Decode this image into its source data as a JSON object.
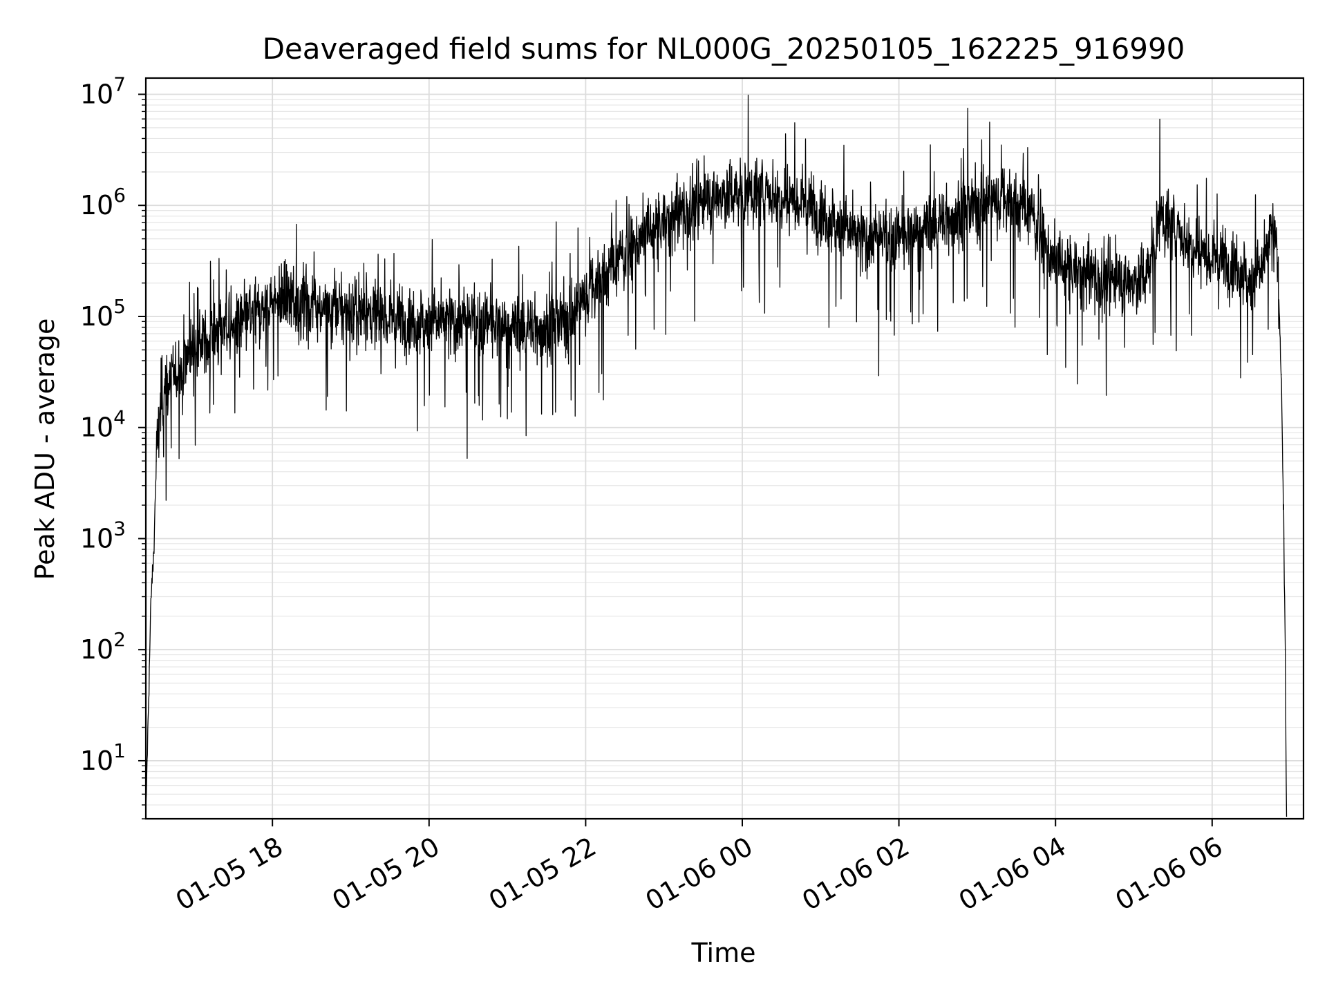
{
  "chart_data": {
    "type": "line",
    "title": "Deaveraged field sums for NL000G_20250105_162225_916990",
    "xlabel": "Time",
    "ylabel": "Peak ADU - average",
    "y_scale": "log",
    "ylim": [
      3,
      14000000
    ],
    "xlim": [
      "2025-01-05 16:23",
      "2025-01-06 07:10"
    ],
    "grid": true,
    "line_color": "#000000",
    "x_ticks": [
      {
        "x": "2025-01-05 18:00",
        "label": "01-05 18"
      },
      {
        "x": "2025-01-05 20:00",
        "label": "01-05 20"
      },
      {
        "x": "2025-01-05 22:00",
        "label": "01-05 22"
      },
      {
        "x": "2025-01-06 00:00",
        "label": "01-06 00"
      },
      {
        "x": "2025-01-06 02:00",
        "label": "01-06 02"
      },
      {
        "x": "2025-01-06 04:00",
        "label": "01-06 04"
      },
      {
        "x": "2025-01-06 06:00",
        "label": "01-06 06"
      }
    ],
    "y_ticks": [
      {
        "value": 10,
        "base": "10",
        "exp": "1"
      },
      {
        "value": 100,
        "base": "10",
        "exp": "2"
      },
      {
        "value": 1000,
        "base": "10",
        "exp": "3"
      },
      {
        "value": 10000,
        "base": "10",
        "exp": "4"
      },
      {
        "value": 100000,
        "base": "10",
        "exp": "5"
      },
      {
        "value": 1000000,
        "base": "10",
        "exp": "6"
      },
      {
        "value": 10000000,
        "base": "10",
        "exp": "7"
      }
    ],
    "series": [
      {
        "style": "noisy",
        "x": [
          "2025-01-05 16:23",
          "2025-01-05 16:24",
          "2025-01-05 16:27",
          "2025-01-05 16:29",
          "2025-01-05 16:31",
          "2025-01-05 16:35",
          "2025-01-05 16:40",
          "2025-01-05 16:50",
          "2025-01-05 17:00",
          "2025-01-05 17:15",
          "2025-01-05 17:30",
          "2025-01-05 17:45",
          "2025-01-05 18:00",
          "2025-01-05 18:30",
          "2025-01-05 19:00",
          "2025-01-05 19:30",
          "2025-01-05 20:00",
          "2025-01-05 20:30",
          "2025-01-05 21:00",
          "2025-01-05 21:30",
          "2025-01-05 21:50",
          "2025-01-05 22:00",
          "2025-01-05 22:20",
          "2025-01-05 22:40",
          "2025-01-05 23:00",
          "2025-01-05 23:20",
          "2025-01-05 23:40",
          "2025-01-06 00:00",
          "2025-01-06 00:20",
          "2025-01-06 00:40",
          "2025-01-06 01:00",
          "2025-01-06 01:30",
          "2025-01-06 02:00",
          "2025-01-06 02:30",
          "2025-01-06 03:00",
          "2025-01-06 03:20",
          "2025-01-06 03:40",
          "2025-01-06 04:00",
          "2025-01-06 04:20",
          "2025-01-06 04:40",
          "2025-01-06 05:00",
          "2025-01-06 05:10",
          "2025-01-06 05:20",
          "2025-01-06 05:40",
          "2025-01-06 06:00",
          "2025-01-06 06:20",
          "2025-01-06 06:30",
          "2025-01-06 06:40",
          "2025-01-06 06:45",
          "2025-01-06 06:50",
          "2025-01-06 06:53",
          "2025-01-06 06:55",
          "2025-01-06 06:56",
          "2025-01-06 06:57"
        ],
        "y": [
          3,
          10,
          300,
          700,
          5000,
          20000,
          25000,
          35000,
          55000,
          70000,
          80000,
          100000,
          140000,
          130000,
          110000,
          100000,
          90000,
          90000,
          80000,
          80000,
          100000,
          160000,
          280000,
          500000,
          700000,
          1000000,
          1200000,
          1300000,
          1300000,
          1200000,
          900000,
          500000,
          500000,
          700000,
          1000000,
          1200000,
          900000,
          300000,
          250000,
          220000,
          200000,
          240000,
          800000,
          500000,
          350000,
          300000,
          200000,
          300000,
          600000,
          400000,
          30000,
          1000,
          100,
          3
        ]
      }
    ]
  }
}
